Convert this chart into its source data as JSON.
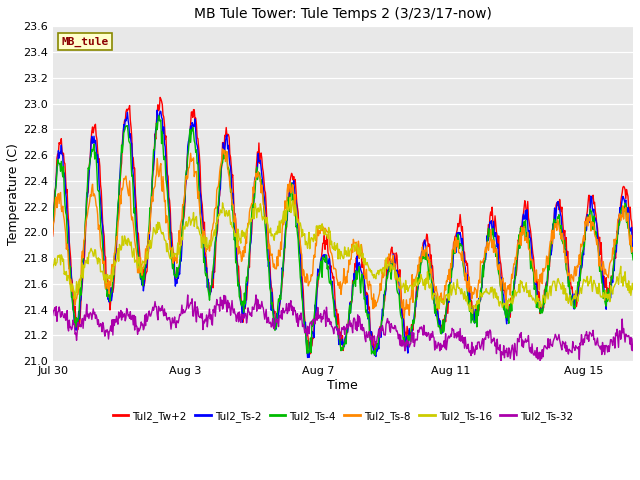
{
  "title": "MB Tule Tower: Tule Temps 2 (3/23/17-now)",
  "xlabel": "Time",
  "ylabel": "Temperature (C)",
  "ylim": [
    21.0,
    23.6
  ],
  "yticks": [
    21.0,
    21.2,
    21.4,
    21.6,
    21.8,
    22.0,
    22.2,
    22.4,
    22.6,
    22.8,
    23.0,
    23.2,
    23.4,
    23.6
  ],
  "xtick_positions": [
    0,
    4,
    8,
    12,
    16
  ],
  "xtick_labels": [
    "Jul 30",
    "Aug 3",
    "Aug 7",
    "Aug 11",
    "Aug 15"
  ],
  "xlim": [
    0,
    17.5
  ],
  "plot_bg": "#e8e8e8",
  "series_colors": [
    "#ff0000",
    "#0000ff",
    "#00bb00",
    "#ff8800",
    "#cccc00",
    "#aa00aa"
  ],
  "series_labels": [
    "Tul2_Tw+2",
    "Tul2_Ts-2",
    "Tul2_Ts-4",
    "Tul2_Ts-8",
    "Tul2_Ts-16",
    "Tul2_Ts-32"
  ],
  "watermark_text": "MB_tule",
  "watermark_bg": "#ffffcc",
  "watermark_border": "#888800",
  "n_points": 800,
  "x_start": 0,
  "x_end": 17.5,
  "seed": 42,
  "linewidth": 1.0
}
